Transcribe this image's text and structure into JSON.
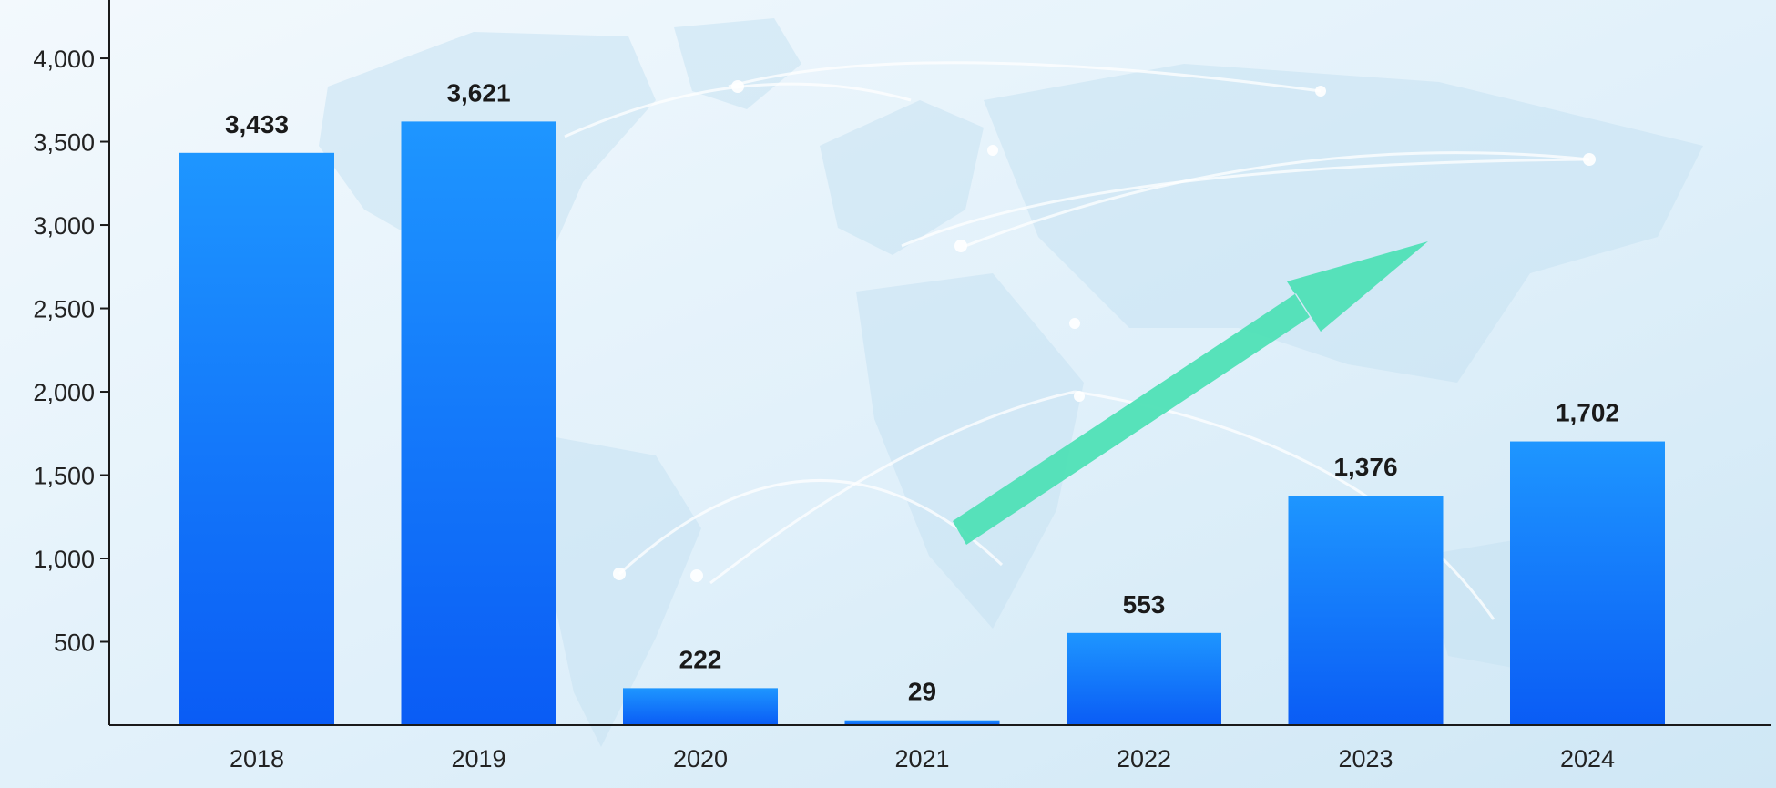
{
  "chart_data": {
    "type": "bar",
    "categories": [
      "2018",
      "2019",
      "2020",
      "2021",
      "2022",
      "2023",
      "2024"
    ],
    "values": [
      3433,
      3621,
      222,
      29,
      553,
      1376,
      1702
    ],
    "value_labels": [
      "3,433",
      "3,621",
      "222",
      "29",
      "553",
      "1,376",
      "1,702"
    ],
    "yticks": [
      500,
      1000,
      1500,
      2000,
      2500,
      3000,
      3500,
      4000
    ],
    "ytick_labels": [
      "500",
      "1,000",
      "1,500",
      "2,000",
      "2,500",
      "3,000",
      "3,500",
      "4,000"
    ],
    "ylim": [
      0,
      4350
    ],
    "title": "",
    "xlabel": "",
    "ylabel": "",
    "grid": false,
    "legend": "none",
    "colors": {
      "bar_top": "#1e96ff",
      "bar_bottom": "#0a5cf5",
      "trend_arrow": "#4fe0b6",
      "background_light": "#f3f9fd",
      "background_mid": "#d4ebf7",
      "axis": "#1a1a1a"
    },
    "decorations": {
      "background": "world-map-with-routes",
      "trend_arrow": "up-right"
    }
  }
}
